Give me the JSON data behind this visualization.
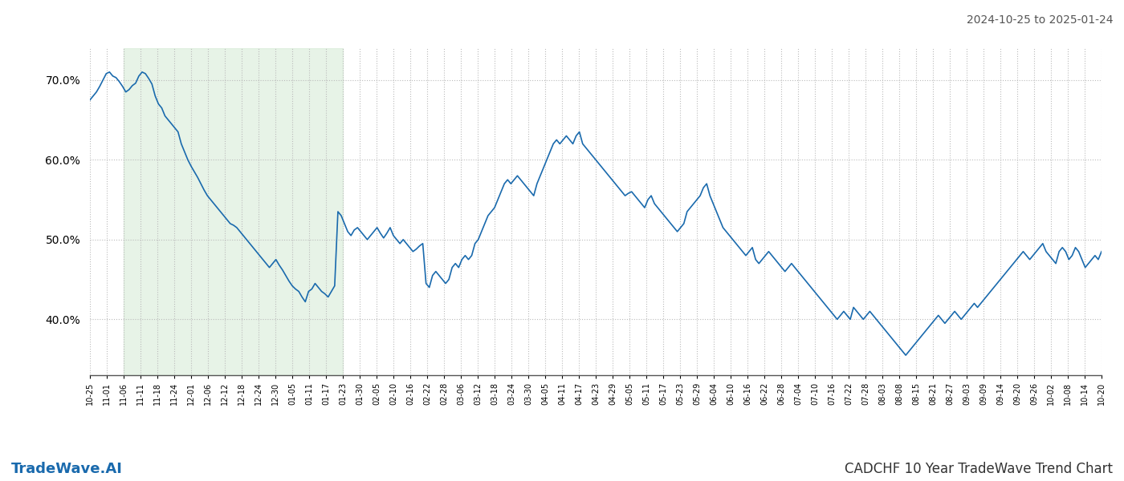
{
  "title_right": "2024-10-25 to 2025-01-24",
  "title_bottom_left": "TradeWave.AI",
  "title_bottom_right": "CADCHF 10 Year TradeWave Trend Chart",
  "line_color": "#1a6aad",
  "line_width": 1.2,
  "shade_color": "#d4ead4",
  "shade_alpha": 0.55,
  "background_color": "#ffffff",
  "grid_color": "#bbbbbb",
  "grid_style": ":",
  "ylim": [
    33,
    74
  ],
  "yticks": [
    40,
    50,
    60,
    70
  ],
  "xlabels": [
    "10-25",
    "11-01",
    "11-06",
    "11-11",
    "11-18",
    "11-24",
    "12-01",
    "12-06",
    "12-12",
    "12-18",
    "12-24",
    "12-30",
    "01-05",
    "01-11",
    "01-17",
    "01-23",
    "01-30",
    "02-05",
    "02-10",
    "02-16",
    "02-22",
    "02-28",
    "03-06",
    "03-12",
    "03-18",
    "03-24",
    "03-30",
    "04-05",
    "04-11",
    "04-17",
    "04-23",
    "04-29",
    "05-05",
    "05-11",
    "05-17",
    "05-23",
    "05-29",
    "06-04",
    "06-10",
    "06-16",
    "06-22",
    "06-28",
    "07-04",
    "07-10",
    "07-16",
    "07-22",
    "07-28",
    "08-03",
    "08-08",
    "08-15",
    "08-21",
    "08-27",
    "09-03",
    "09-09",
    "09-14",
    "09-20",
    "09-26",
    "10-02",
    "10-08",
    "10-14",
    "10-20"
  ],
  "shade_start_label": "11-06",
  "shade_end_label": "01-23",
  "values": [
    67.5,
    68.0,
    68.5,
    69.2,
    70.0,
    70.8,
    71.0,
    70.5,
    70.3,
    69.8,
    69.2,
    68.5,
    68.8,
    69.3,
    69.6,
    70.5,
    71.0,
    70.8,
    70.2,
    69.5,
    68.0,
    67.0,
    66.5,
    65.5,
    65.0,
    64.5,
    64.0,
    63.5,
    62.0,
    61.0,
    60.0,
    59.2,
    58.5,
    57.8,
    57.0,
    56.2,
    55.5,
    55.0,
    54.5,
    54.0,
    53.5,
    53.0,
    52.5,
    52.0,
    51.8,
    51.5,
    51.0,
    50.5,
    50.0,
    49.5,
    49.0,
    48.5,
    48.0,
    47.5,
    47.0,
    46.5,
    47.0,
    47.5,
    46.8,
    46.2,
    45.5,
    44.8,
    44.2,
    43.8,
    43.5,
    42.8,
    42.2,
    43.5,
    43.8,
    44.5,
    44.0,
    43.5,
    43.2,
    42.8,
    43.5,
    44.2,
    53.5,
    53.0,
    52.0,
    51.0,
    50.5,
    51.2,
    51.5,
    51.0,
    50.5,
    50.0,
    50.5,
    51.0,
    51.5,
    50.8,
    50.2,
    50.8,
    51.5,
    50.5,
    50.0,
    49.5,
    50.0,
    49.5,
    49.0,
    48.5,
    48.8,
    49.2,
    49.5,
    44.5,
    44.0,
    45.5,
    46.0,
    45.5,
    45.0,
    44.5,
    45.0,
    46.5,
    47.0,
    46.5,
    47.5,
    48.0,
    47.5,
    48.0,
    49.5,
    50.0,
    51.0,
    52.0,
    53.0,
    53.5,
    54.0,
    55.0,
    56.0,
    57.0,
    57.5,
    57.0,
    57.5,
    58.0,
    57.5,
    57.0,
    56.5,
    56.0,
    55.5,
    57.0,
    58.0,
    59.0,
    60.0,
    61.0,
    62.0,
    62.5,
    62.0,
    62.5,
    63.0,
    62.5,
    62.0,
    63.0,
    63.5,
    62.0,
    61.5,
    61.0,
    60.5,
    60.0,
    59.5,
    59.0,
    58.5,
    58.0,
    57.5,
    57.0,
    56.5,
    56.0,
    55.5,
    55.8,
    56.0,
    55.5,
    55.0,
    54.5,
    54.0,
    55.0,
    55.5,
    54.5,
    54.0,
    53.5,
    53.0,
    52.5,
    52.0,
    51.5,
    51.0,
    51.5,
    52.0,
    53.5,
    54.0,
    54.5,
    55.0,
    55.5,
    56.5,
    57.0,
    55.5,
    54.5,
    53.5,
    52.5,
    51.5,
    51.0,
    50.5,
    50.0,
    49.5,
    49.0,
    48.5,
    48.0,
    48.5,
    49.0,
    47.5,
    47.0,
    47.5,
    48.0,
    48.5,
    48.0,
    47.5,
    47.0,
    46.5,
    46.0,
    46.5,
    47.0,
    46.5,
    46.0,
    45.5,
    45.0,
    44.5,
    44.0,
    43.5,
    43.0,
    42.5,
    42.0,
    41.5,
    41.0,
    40.5,
    40.0,
    40.5,
    41.0,
    40.5,
    40.0,
    41.5,
    41.0,
    40.5,
    40.0,
    40.5,
    41.0,
    40.5,
    40.0,
    39.5,
    39.0,
    38.5,
    38.0,
    37.5,
    37.0,
    36.5,
    36.0,
    35.5,
    36.0,
    36.5,
    37.0,
    37.5,
    38.0,
    38.5,
    39.0,
    39.5,
    40.0,
    40.5,
    40.0,
    39.5,
    40.0,
    40.5,
    41.0,
    40.5,
    40.0,
    40.5,
    41.0,
    41.5,
    42.0,
    41.5,
    42.0,
    42.5,
    43.0,
    43.5,
    44.0,
    44.5,
    45.0,
    45.5,
    46.0,
    46.5,
    47.0,
    47.5,
    48.0,
    48.5,
    48.0,
    47.5,
    48.0,
    48.5,
    49.0,
    49.5,
    48.5,
    48.0,
    47.5,
    47.0,
    48.5,
    49.0,
    48.5,
    47.5,
    48.0,
    49.0,
    48.5,
    47.5,
    46.5,
    47.0,
    47.5,
    48.0,
    47.5,
    48.5
  ]
}
